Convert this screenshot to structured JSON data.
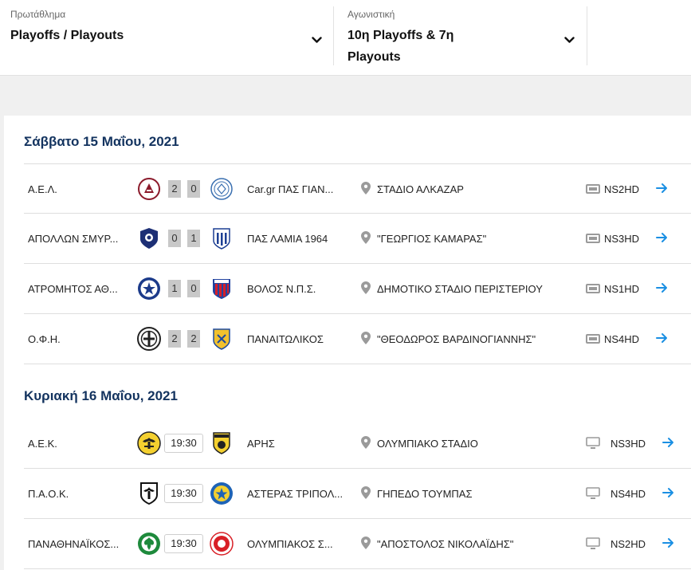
{
  "filters": {
    "championship": {
      "label": "Πρωτάθλημα",
      "value": "Playoffs / Playouts"
    },
    "matchday": {
      "label": "Αγωνιστική",
      "value_line1": "10η Playoffs & 7η",
      "value_line2": "Playouts"
    }
  },
  "colors": {
    "title": "#13335f",
    "arrow": "#1a8fe3",
    "score_bg": "#c8c8c8"
  },
  "days": [
    {
      "title": "Σάββατο 15 Μαΐου, 2021",
      "matches": [
        {
          "home": "Α.Ε.Λ.",
          "home_crest": "ael-crest",
          "score_home": "2",
          "score_away": "0",
          "away": "Car.gr ΠΑΣ ΓΙΑΝ...",
          "away_crest": "pas-giannina-crest",
          "venue": "ΣΤΑΔΙΟ ΑΛΚΑΖΑΡ",
          "channel": "NS2HD"
        },
        {
          "home": "ΑΠΟΛΛΩΝ ΣΜΥΡ...",
          "home_crest": "apollon-crest",
          "score_home": "0",
          "score_away": "1",
          "away": "ΠΑΣ ΛΑΜΙΑ 1964",
          "away_crest": "lamia-crest",
          "venue": "\"ΓΕΩΡΓΙΟΣ ΚΑΜΑΡΑΣ\"",
          "channel": "NS3HD"
        },
        {
          "home": "ΑΤΡΟΜΗΤΟΣ ΑΘ...",
          "home_crest": "atromitos-crest",
          "score_home": "1",
          "score_away": "0",
          "away": "ΒΟΛΟΣ Ν.Π.Σ.",
          "away_crest": "volos-crest",
          "venue": "ΔΗΜΟΤΙΚΟ ΣΤΑΔΙΟ ΠΕΡΙΣΤΕΡΙΟΥ",
          "channel": "NS1HD"
        },
        {
          "home": "Ο.Φ.Η.",
          "home_crest": "ofi-crest",
          "score_home": "2",
          "score_away": "2",
          "away": "ΠΑΝΑΙΤΩΛΙΚΟΣ",
          "away_crest": "panaitolikos-crest",
          "venue": "\"ΘΕΟΔΩΡΟΣ ΒΑΡΔΙΝΟΓΙΑΝΝΗΣ\"",
          "channel": "NS4HD"
        }
      ]
    },
    {
      "title": "Κυριακή 16 Μαΐου, 2021",
      "matches": [
        {
          "home": "Α.Ε.Κ.",
          "home_crest": "aek-crest",
          "time": "19:30",
          "away": "ΑΡΗΣ",
          "away_crest": "aris-crest",
          "venue": "ΟΛΥΜΠΙΑΚΟ ΣΤΑΔΙΟ",
          "channel": "NS3HD"
        },
        {
          "home": "Π.Α.Ο.Κ.",
          "home_crest": "paok-crest",
          "time": "19:30",
          "away": "ΑΣΤΕΡΑΣ ΤΡΙΠΟΛ...",
          "away_crest": "asteras-crest",
          "venue": "ΓΗΠΕΔΟ ΤΟΥΜΠΑΣ",
          "channel": "NS4HD"
        },
        {
          "home": "ΠΑΝΑΘΗΝΑΪΚΟΣ...",
          "home_crest": "panathinaikos-crest",
          "time": "19:30",
          "away": "ΟΛΥΜΠΙΑΚΟΣ Σ...",
          "away_crest": "olympiacos-crest",
          "venue": "\"ΑΠΟΣΤΟΛΟΣ ΝΙΚΟΛΑΪΔΗΣ\"",
          "channel": "NS2HD"
        }
      ]
    }
  ]
}
